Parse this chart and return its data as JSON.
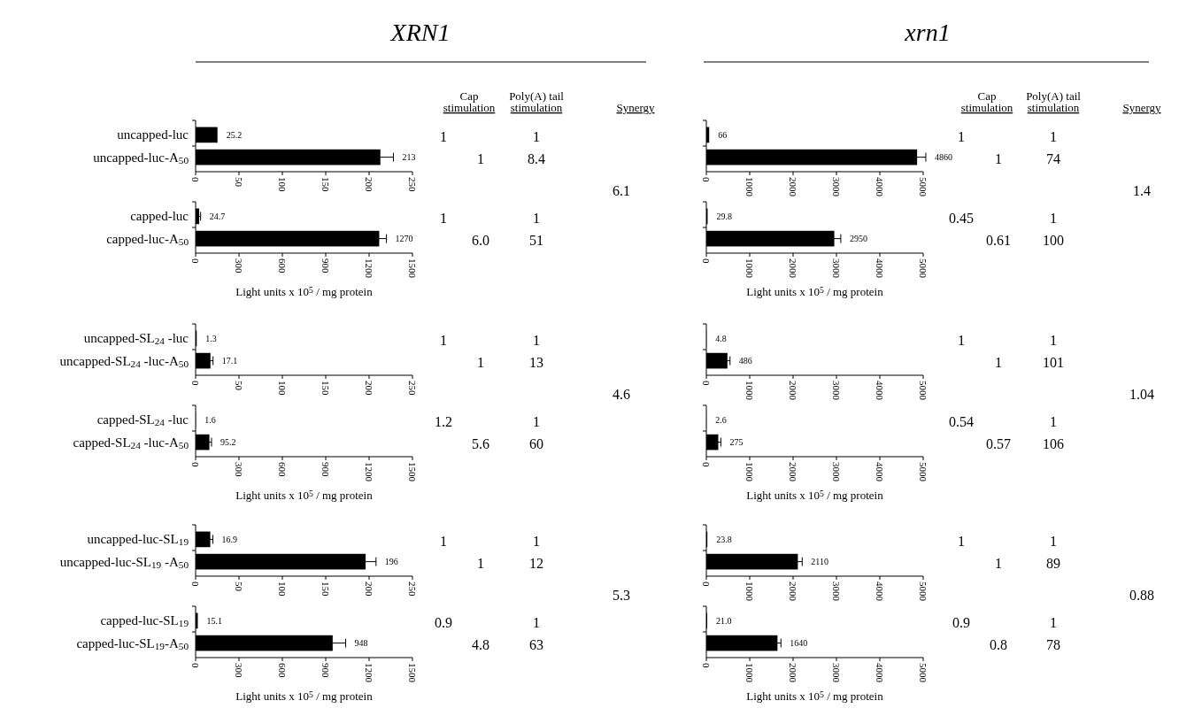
{
  "chart_data": [
    {
      "type": "other",
      "title": "XRN1",
      "annotations": [
        "Cap stimulation",
        "Poly(A) tail stimulation",
        "Synergy"
      ]
    },
    {
      "type": "other",
      "title": "xrn1",
      "annotations": [
        "Cap stimulation",
        "Poly(A) tail stimulation",
        "Synergy"
      ]
    },
    {
      "type": "bar",
      "orientation": "horizontal",
      "categories": [
        "uncapped-luc",
        "uncapped-luc-A$_{50}$"
      ],
      "values": [
        25.2,
        213
      ],
      "errors": [
        null,
        15
      ],
      "color": "#000000",
      "xlim": [
        0,
        250
      ],
      "xticks": [
        0,
        50,
        100,
        150,
        200,
        250
      ],
      "data_labels": true
    },
    {
      "type": "bar",
      "orientation": "horizontal",
      "categories": [
        "capped-luc",
        "capped-luc-A$_{50}$"
      ],
      "values": [
        24.7,
        1270
      ],
      "errors": [
        10,
        50
      ],
      "color": "#000000",
      "xlim": [
        0,
        1500
      ],
      "xticks": [
        0,
        300,
        600,
        900,
        1200,
        1500
      ],
      "xlabel": "Light units x 10$^{5}$ / mg protein",
      "data_labels": true
    },
    {
      "type": "other",
      "annotations": [
        "1",
        "1",
        "1",
        "8.4",
        "1",
        "1",
        "6.0",
        "51",
        "6.1"
      ]
    },
    {
      "type": "bar",
      "orientation": "horizontal",
      "categories": [
        null,
        null
      ],
      "values": [
        66,
        4860
      ],
      "errors": [
        null,
        200
      ],
      "color": "#000000",
      "xlim": [
        0,
        5000
      ],
      "xticks": [
        0,
        1000,
        2000,
        3000,
        4000,
        5000
      ],
      "data_labels": true
    },
    {
      "type": "bar",
      "orientation": "horizontal",
      "categories": [
        null,
        null
      ],
      "values": [
        29.8,
        2950
      ],
      "errors": [
        null,
        150
      ],
      "color": "#000000",
      "xlim": [
        0,
        5000
      ],
      "xticks": [
        0,
        1000,
        2000,
        3000,
        4000,
        5000
      ],
      "xlabel": "Light units x 10$^{5}$ / mg protein",
      "data_labels": true
    },
    {
      "type": "other",
      "annotations": [
        "1",
        "1",
        "1",
        "74",
        "0.45",
        "1",
        "0.61",
        "100",
        "1.4"
      ]
    },
    {
      "type": "bar",
      "orientation": "horizontal",
      "categories": [
        "uncapped-SL$_{24}$ -luc",
        "uncapped-SL$_{24}$ -luc-A$_{50}$"
      ],
      "values": [
        1.3,
        17.1
      ],
      "errors": [
        null,
        3
      ],
      "color": "#000000",
      "xlim": [
        0,
        250
      ],
      "xticks": [
        0,
        50,
        100,
        150,
        200,
        250
      ],
      "data_labels": true
    },
    {
      "type": "bar",
      "orientation": "horizontal",
      "categories": [
        "capped-SL$_{24}$ -luc",
        "capped-SL$_{24}$ -luc-A$_{50}$"
      ],
      "values": [
        1.6,
        95.2
      ],
      "errors": [
        null,
        15
      ],
      "color": "#000000",
      "xlim": [
        0,
        1500
      ],
      "xticks": [
        0,
        300,
        600,
        900,
        1200,
        1500
      ],
      "xlabel": "Light units x 10$^{5}$ / mg protein",
      "data_labels": true
    },
    {
      "type": "other",
      "annotations": [
        "1",
        "1",
        "1",
        "13",
        "1.2",
        "1",
        "5.6",
        "60",
        "4.6"
      ]
    },
    {
      "type": "bar",
      "orientation": "horizontal",
      "categories": [
        null,
        null
      ],
      "values": [
        4.8,
        486
      ],
      "errors": [
        null,
        60
      ],
      "color": "#000000",
      "xlim": [
        0,
        5000
      ],
      "xticks": [
        0,
        1000,
        2000,
        3000,
        4000,
        5000
      ],
      "data_labels": true
    },
    {
      "type": "bar",
      "orientation": "horizontal",
      "categories": [
        null,
        null
      ],
      "values": [
        2.6,
        275
      ],
      "errors": [
        null,
        60
      ],
      "color": "#000000",
      "xlim": [
        0,
        5000
      ],
      "xticks": [
        0,
        1000,
        2000,
        3000,
        4000,
        5000
      ],
      "xlabel": "Light units x 10$^{5}$ / mg protein",
      "data_labels": true
    },
    {
      "type": "other",
      "annotations": [
        "1",
        "1",
        "1",
        "101",
        "0.54",
        "1",
        "0.57",
        "106",
        "1.04"
      ]
    },
    {
      "type": "bar",
      "orientation": "horizontal",
      "categories": [
        "uncapped-luc-SL$_{19}$",
        "uncapped-luc-SL$_{19}$ -A$_{50}$"
      ],
      "values": [
        16.9,
        196
      ],
      "errors": [
        3,
        12
      ],
      "color": "#000000",
      "xlim": [
        0,
        250
      ],
      "xticks": [
        0,
        50,
        100,
        150,
        200,
        250
      ],
      "data_labels": true
    },
    {
      "type": "bar",
      "orientation": "horizontal",
      "categories": [
        "capped-luc-SL$_{19}$",
        "capped-luc-SL$_{19}$-A$_{50}$"
      ],
      "values": [
        15.1,
        948
      ],
      "errors": [
        null,
        90
      ],
      "color": "#000000",
      "xlim": [
        0,
        1500
      ],
      "xticks": [
        0,
        300,
        600,
        900,
        1200,
        1500
      ],
      "xlabel": "Light units x 10$^{5}$ / mg protein",
      "data_labels": true
    },
    {
      "type": "other",
      "annotations": [
        "1",
        "1",
        "1",
        "12",
        "0.9",
        "1",
        "4.8",
        "63",
        "5.3"
      ]
    },
    {
      "type": "bar",
      "orientation": "horizontal",
      "categories": [
        null,
        null
      ],
      "values": [
        23.8,
        2110
      ],
      "errors": [
        null,
        100
      ],
      "color": "#000000",
      "xlim": [
        0,
        5000
      ],
      "xticks": [
        0,
        1000,
        2000,
        3000,
        4000,
        5000
      ],
      "data_labels": true
    },
    {
      "type": "bar",
      "orientation": "horizontal",
      "categories": [
        null,
        null
      ],
      "values": [
        21.0,
        1640
      ],
      "value_labels": [
        "21.0",
        "1640"
      ],
      "errors": [
        null,
        80
      ],
      "color": "#000000",
      "xlim": [
        0,
        5000
      ],
      "xticks": [
        0,
        1000,
        2000,
        3000,
        4000,
        5000
      ],
      "xlabel": "Light units x 10$^{5}$ / mg protein"
    },
    {
      "type": "other",
      "annotations": [
        "1",
        "1",
        "1",
        "89",
        "0.9",
        "1",
        "0.8",
        "78",
        "0.88"
      ]
    }
  ]
}
